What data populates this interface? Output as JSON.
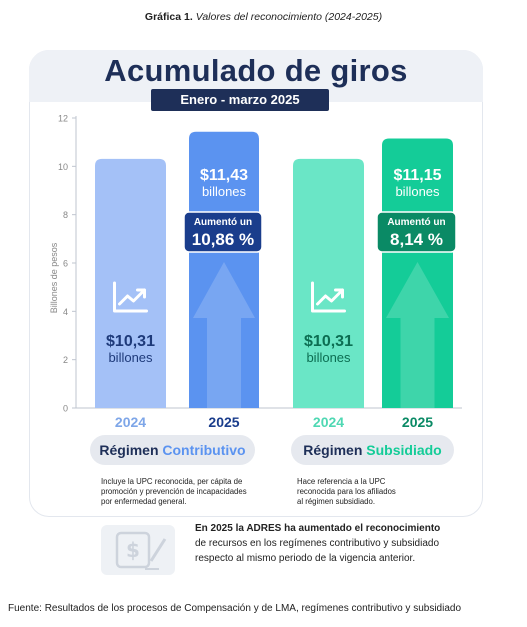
{
  "caption": {
    "prefix": "Gráfica 1.",
    "text": "Valores del reconocimiento (2024-2025)"
  },
  "title": "Acumulado de giros",
  "period": "Enero - marzo 2025",
  "chart_data": {
    "type": "bar",
    "ylabel": "Billones de pesos",
    "ylim": [
      0,
      12
    ],
    "yticks": [
      "0",
      "2",
      "4",
      "6",
      "8",
      "10",
      "12"
    ],
    "grid": false,
    "categories": [
      "2024",
      "2025",
      "2024",
      "2025"
    ],
    "values": [
      10.31,
      11.43,
      10.31,
      11.15
    ],
    "value_labels": [
      "$10,31",
      "$11,43",
      "$10,31",
      "$11,15"
    ],
    "unit_label": "billones",
    "groups": [
      {
        "prefix": "Régimen",
        "name": "Contributivo",
        "color": "#5b93f0",
        "note": [
          "Incluye la UPC reconocida, per cápita de",
          "promoción y prevención de incapacidades",
          "por enfermedad general."
        ]
      },
      {
        "prefix": "Régimen",
        "name": "Subsidiado",
        "color": "#14cc98",
        "note": [
          "Hace referencia a la UPC",
          "reconocida para los afiliados",
          "al régimen subsidiado."
        ]
      }
    ],
    "increases": [
      {
        "label": "Aumentó un",
        "value": "10,86 %"
      },
      {
        "label": "Aumentó un",
        "value": "8,14 %"
      }
    ]
  },
  "summary": {
    "bold": "En 2025 la ADRES ha aumentado el reconocimiento",
    "text": "de recursos en los regímenes contributivo y subsidiado respecto al mismo periodo de la vigencia anterior."
  },
  "source": "Fuente: Resultados de los procesos de Compensación y de LMA, regímenes contributivo y subsidiado",
  "colors": {
    "navy": "#1e2f58",
    "c2024": "#a4c1f7",
    "c2025": "#5b93f0",
    "c2025_dark": "#1a3d8c",
    "s2024": "#6ae6c6",
    "s2025": "#14cc98",
    "s2025_dark": "#0a8a65",
    "lbl2024c": "#7ea6e8",
    "lbl2024s": "#4fd8b3"
  }
}
